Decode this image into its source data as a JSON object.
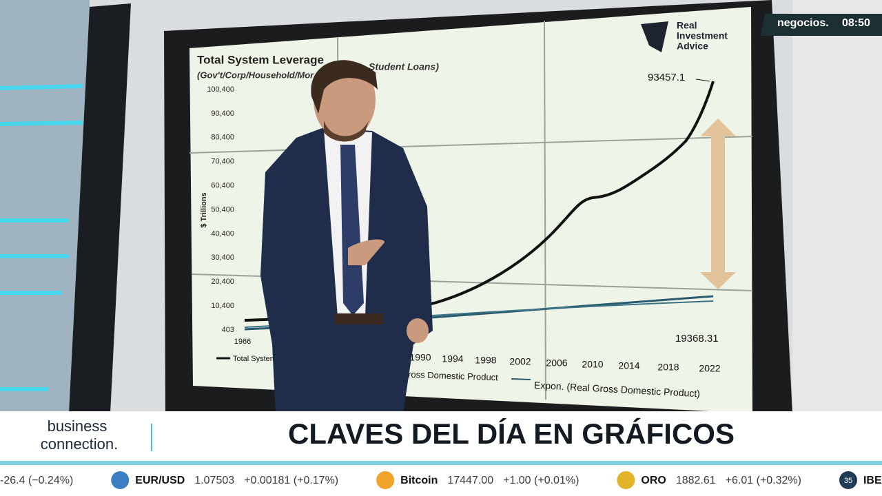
{
  "overlay": {
    "brand": "negocios.",
    "time": "08:50"
  },
  "screen": {
    "logo": [
      "Real",
      "Investment",
      "Advice"
    ]
  },
  "chart": {
    "title": "Total System Leverage",
    "subtitle_left": "(Gov't/Corp/Household/Mor",
    "subtitle_right": "Student Loans)",
    "y_axis_label": "$ Trillions",
    "y_labels": [
      "100,400",
      "90,400",
      "80,400",
      "70,400",
      "60,400",
      "50,400",
      "40,400",
      "30,400",
      "20,400",
      "10,400",
      "403"
    ],
    "x_labels": [
      "1966",
      "1990",
      "1994",
      "1998",
      "2002",
      "2006",
      "2010",
      "2014",
      "2018",
      "2022"
    ],
    "annotations": [
      "93457.1",
      "19368.31"
    ],
    "legend": [
      "Total System",
      "Gross Domestic Product",
      "Expon. (Real Gross Domestic Product)"
    ]
  },
  "lower_third": {
    "show": [
      "business",
      "connection."
    ],
    "headline": "CLAVES DEL DÍA EN GRÁFICOS"
  },
  "ticker": [
    {
      "change": "-26.4 (−0.24%)"
    },
    {
      "name": "EUR/USD",
      "price": "1.07503",
      "change": "+0.00181 (+0.17%)"
    },
    {
      "name": "Bitcoin",
      "price": "17447.00",
      "change": "+1.00 (+0.01%)"
    },
    {
      "name": "ORO",
      "price": "1882.61",
      "change": "+6.01 (+0.32%)"
    },
    {
      "icon": "35",
      "name": "IBEX"
    }
  ]
}
